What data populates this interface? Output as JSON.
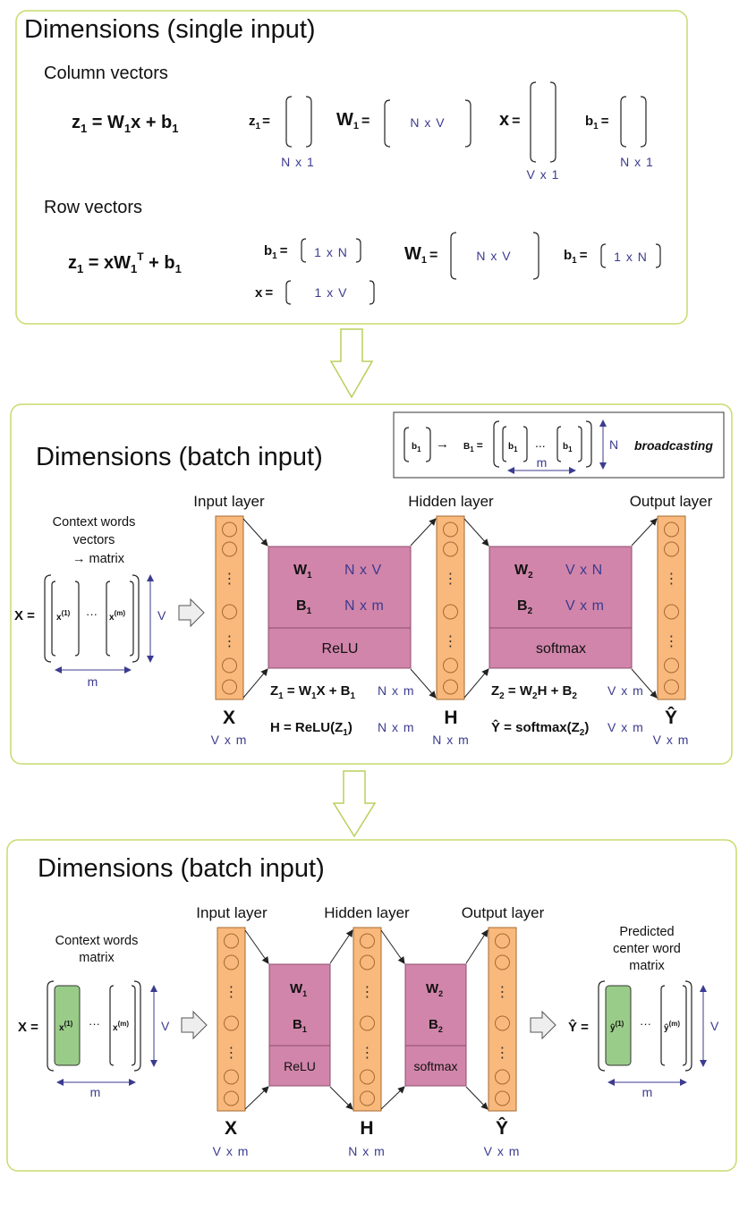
{
  "panel1": {
    "title": "Dimensions (single input)",
    "column_heading": "Column vectors",
    "row_heading": "Row vectors",
    "col_eq": {
      "z": "z",
      "sub1": "1",
      "mid": " = W",
      "sub2": "1",
      "rest": "x + b",
      "sub3": "1"
    },
    "col_z": {
      "name": "z",
      "sub": "1",
      "dim": "N x 1"
    },
    "col_W": {
      "name": "W",
      "sub": "1",
      "dim": "N x V"
    },
    "col_x": {
      "name": "x",
      "dim": "V x 1"
    },
    "col_b": {
      "name": "b",
      "sub": "1",
      "dim": "N x 1"
    },
    "row_eq": {
      "z": "z",
      "sub1": "1",
      "mid": " = xW",
      "sub2": "1",
      "sup": "T",
      "rest": " + b",
      "sub3": "1"
    },
    "row_b1": {
      "name": "b",
      "sub": "1",
      "dim": "1 x N"
    },
    "row_x": {
      "name": "x",
      "dim": "1 x V"
    },
    "row_W": {
      "name": "W",
      "sub": "1",
      "dim": "N x V"
    },
    "row_b2": {
      "name": "b",
      "sub": "1",
      "dim": "1 x N"
    },
    "equals": "="
  },
  "panel2": {
    "title": "Dimensions (batch input)",
    "broadcast": {
      "b": "b",
      "sub": "1",
      "arrow": "→",
      "B": "B",
      "dots": "...",
      "m": "m",
      "N": "N",
      "text": "broadcasting"
    },
    "context_caption": [
      "Context words",
      "vectors",
      "→ matrix"
    ],
    "X_eq": "X =",
    "x1": "x",
    "x1_sup": "(1)",
    "xm": "x",
    "xm_sup": "(m)",
    "hdots": "···",
    "V": "V",
    "m": "m",
    "input_layer": "Input layer",
    "hidden_layer": "Hidden layer",
    "output_layer": "Output layer",
    "W1": "W",
    "W1_sub": "1",
    "W1_dim": "N x V",
    "B1": "B",
    "B1_sub": "1",
    "B1_dim": "N x m",
    "relu": "ReLU",
    "W2": "W",
    "W2_sub": "2",
    "W2_dim": "V x N",
    "B2": "B",
    "B2_sub": "2",
    "B2_dim": "V x m",
    "softmax": "softmax",
    "X_label": "X",
    "X_dim": "V x m",
    "H_label": "H",
    "H_dim": "N x m",
    "Y_label": "Ŷ",
    "Y_dim": "V x m",
    "eq1": {
      "a": "Z",
      "a_sub": "1",
      "b": " = W",
      "b_sub": "1",
      "c": "X + B",
      "c_sub": "1",
      "dim": "N x m"
    },
    "eq2": {
      "a": "H = ReLU(",
      "b": "Z",
      "b_sub": "1",
      "c": ")",
      "dim": "N x m"
    },
    "eq3": {
      "a": "Z",
      "a_sub": "2",
      "b": " = W",
      "b_sub": "2",
      "c": "H + B",
      "c_sub": "2",
      "dim": "V x m"
    },
    "eq4": {
      "a": "Ŷ",
      "b": " = softmax(",
      "c": "Z",
      "c_sub": "2",
      "d": ")",
      "dim": "V x m"
    }
  },
  "panel3": {
    "title": "Dimensions (batch input)",
    "context_caption": [
      "Context words",
      "matrix"
    ],
    "predicted_caption": [
      "Predicted",
      "center word",
      "matrix"
    ],
    "X_eq": "X =",
    "Y_eq": "Ŷ =",
    "x1": "x",
    "x1_sup": "(1)",
    "xm": "x",
    "xm_sup": "(m)",
    "y1": "ŷ",
    "y1_sup": "(1)",
    "ym": "ŷ",
    "ym_sup": "(m)",
    "hdots": "···",
    "V": "V",
    "m": "m",
    "input_layer": "Input layer",
    "hidden_layer": "Hidden layer",
    "output_layer": "Output layer",
    "W1": "W",
    "W1_sub": "1",
    "B1": "B",
    "B1_sub": "1",
    "relu": "ReLU",
    "W2": "W",
    "W2_sub": "2",
    "B2": "B",
    "B2_sub": "2",
    "softmax": "softmax",
    "X_label": "X",
    "X_dim": "V x m",
    "H_label": "H",
    "H_dim": "N x m",
    "Y_label": "Ŷ",
    "Y_dim": "V x m"
  },
  "colors": {
    "panel_border": "#c6dc6e",
    "neuron_fill": "#f9b97c",
    "neuron_stroke": "#a46a32",
    "weight_fill": "#d185aa",
    "weight_stroke": "#8f4d6e",
    "vector_green": "#99cc88",
    "dim_text": "#3b3b8f"
  }
}
